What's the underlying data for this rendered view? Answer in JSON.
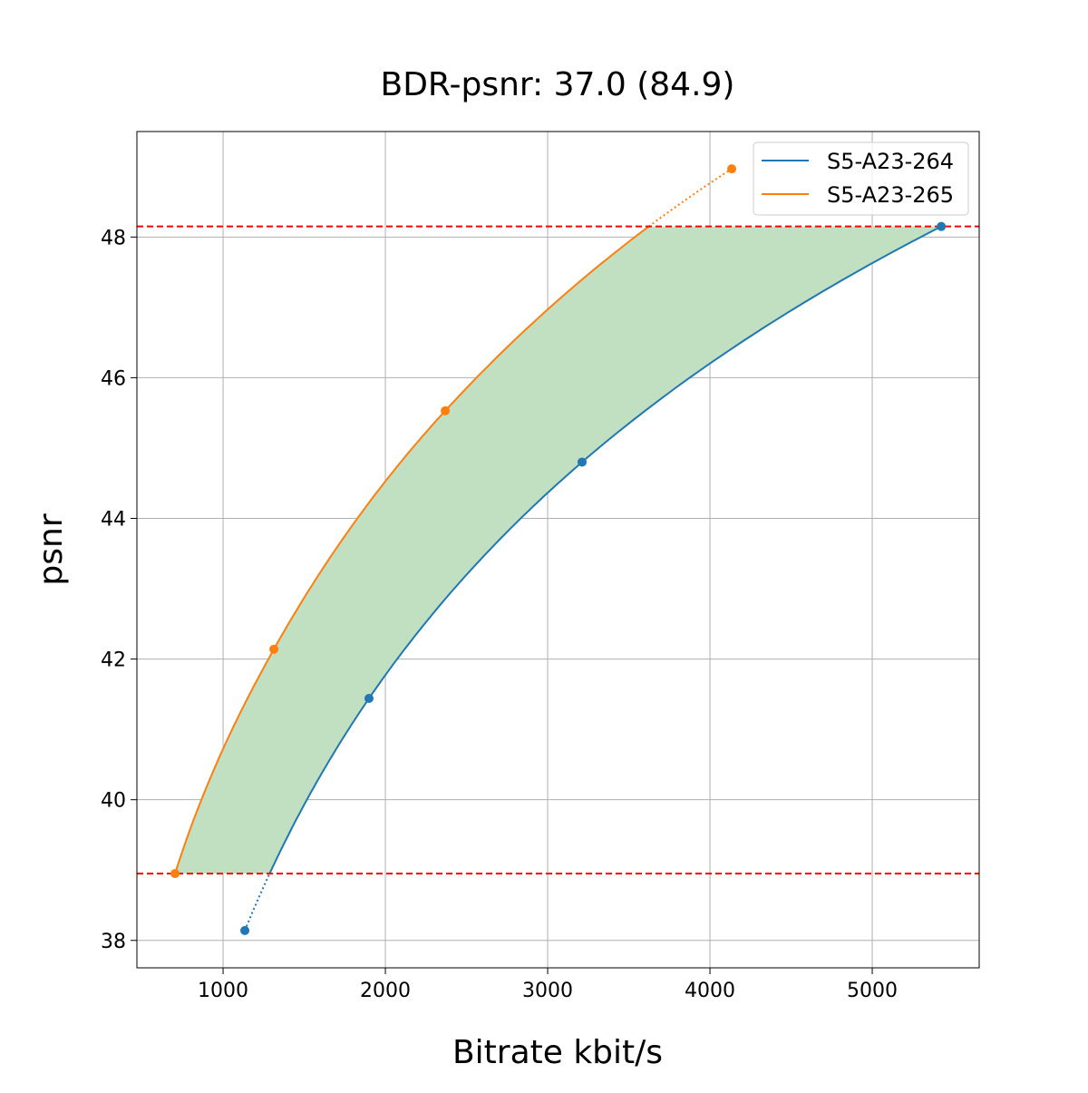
{
  "chart_data": {
    "type": "line",
    "title": "BDR-psnr: 37.0 (84.9)",
    "xlabel": "Bitrate kbit/s",
    "ylabel": "psnr",
    "xlim": [
      469,
      5659
    ],
    "ylim": [
      37.61,
      49.5
    ],
    "xticks": [
      1000,
      2000,
      3000,
      4000,
      5000
    ],
    "yticks": [
      38,
      40,
      42,
      44,
      46,
      48
    ],
    "grid": true,
    "legend_position": "top-right",
    "series": [
      {
        "name": "S5-A23-264",
        "color": "#1f77b4",
        "x": [
          1134,
          1899,
          3212,
          5425
        ],
        "y": [
          38.14,
          41.44,
          44.8,
          48.15
        ]
      },
      {
        "name": "S5-A23-265",
        "color": "#ff7f0e",
        "x": [
          704,
          1313,
          2369,
          4134
        ],
        "y": [
          38.95,
          42.14,
          45.53,
          48.97
        ]
      }
    ],
    "hlines": [
      {
        "y": 48.15,
        "color": "#ff0000",
        "style": "dashed"
      },
      {
        "y": 38.95,
        "color": "#ff0000",
        "style": "dashed"
      }
    ],
    "fill_between": {
      "color": "#c1dfc1",
      "y_range": [
        38.95,
        48.15
      ]
    }
  }
}
